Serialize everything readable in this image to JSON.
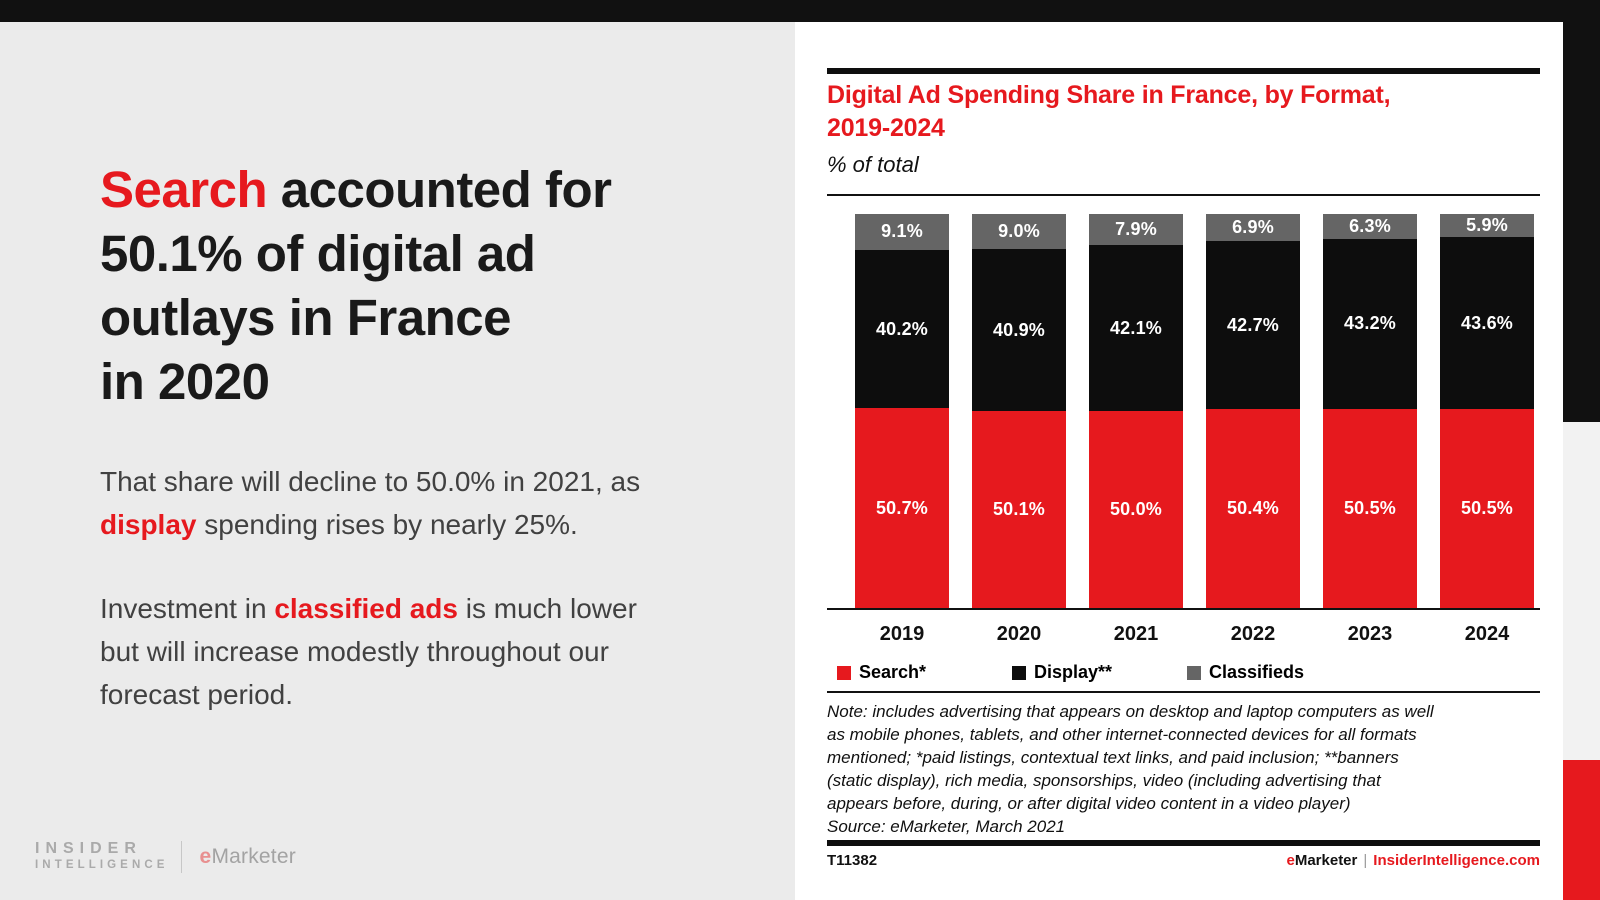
{
  "left_panel": {
    "headline": {
      "line1_highlight": "Search",
      "line1_rest": " accounted for",
      "line2": "50.1% of digital ad",
      "line3": "outlays in France",
      "line4": "in 2020"
    },
    "para1": {
      "line1": "That share will decline to 50.0% in 2021, as",
      "line2_highlight": "display",
      "line2_rest": " spending rises by nearly 25%."
    },
    "para2": {
      "line1_pre": "Investment in ",
      "line1_highlight": "classified ads",
      "line1_post": " is much lower",
      "line2": "but will increase modestly throughout our",
      "line3": "forecast period."
    },
    "logo": {
      "line1": "INSIDER",
      "line2": "INTELLIGENCE",
      "brand_e": "e",
      "brand_rest": "Marketer"
    }
  },
  "chart_panel": {
    "title_line1": "Digital Ad Spending Share in France, by Format,",
    "title_line2": "2019-2024",
    "subtitle": "% of total",
    "note_lines": [
      "Note: includes advertising that appears on desktop and laptop computers as well",
      "as mobile phones, tablets, and other internet-connected devices for all formats",
      "mentioned; *paid listings, contextual text links, and paid inclusion; **banners",
      "(static display), rich media, sponsorships, video (including advertising that",
      "appears before, during, or after digital video content in a video player)",
      "Source: eMarketer, March 2021"
    ],
    "footer_left": "T11382",
    "footer_brand_e": "e",
    "footer_brand_rest": "Marketer",
    "footer_separator": "|",
    "footer_site": "InsiderIntelligence.com"
  },
  "chart_data": {
    "type": "bar",
    "stacked": true,
    "title": "Digital Ad Spending Share in France, by Format, 2019-2024",
    "ylabel": "% of total",
    "ylim": [
      0,
      100
    ],
    "grid": false,
    "legend_position": "bottom",
    "value_suffix": "%",
    "categories": [
      "2019",
      "2020",
      "2021",
      "2022",
      "2023",
      "2024"
    ],
    "series": [
      {
        "name": "Search*",
        "color": "#e6191e",
        "values": [
          50.7,
          50.1,
          50.0,
          50.4,
          50.5,
          50.5
        ]
      },
      {
        "name": "Display**",
        "color": "#0d0d0d",
        "values": [
          40.2,
          40.9,
          42.1,
          42.7,
          43.2,
          43.6
        ]
      },
      {
        "name": "Classifieds",
        "color": "#656565",
        "values": [
          9.1,
          9.0,
          7.9,
          6.9,
          6.3,
          5.9
        ]
      }
    ]
  },
  "colors": {
    "accent_red": "#e6191e",
    "bar_black": "#0d0d0d",
    "bar_gray": "#656565",
    "left_panel_bg": "#ebebeb",
    "top_bar": "#111111",
    "edge_gray": "#f2f2f2"
  }
}
